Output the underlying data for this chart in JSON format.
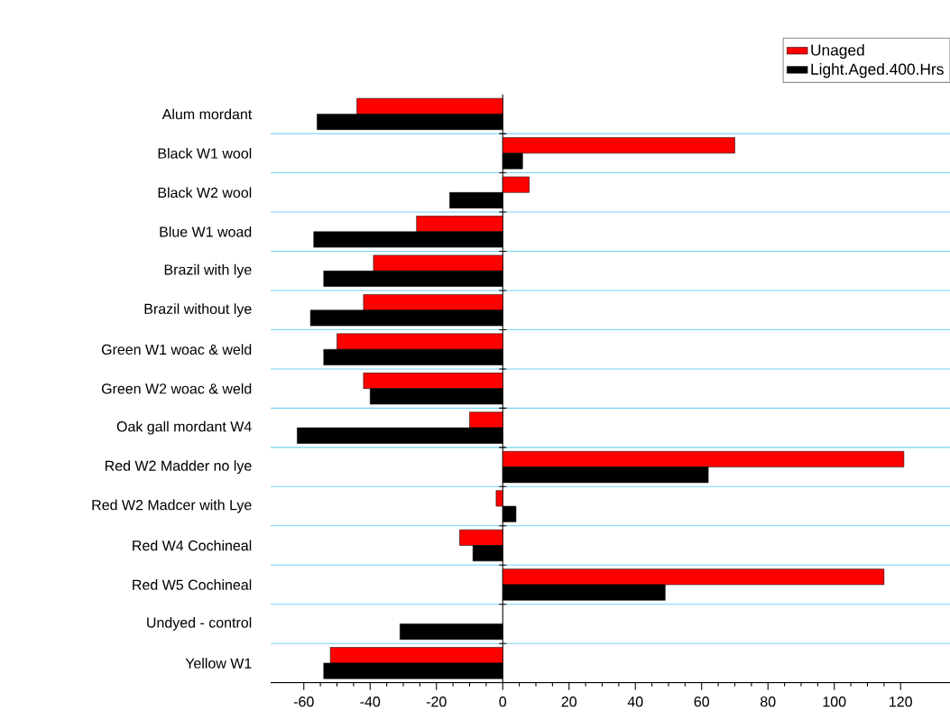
{
  "chart_data": {
    "type": "bar",
    "orientation": "horizontal",
    "categories": [
      "Alum mordant",
      "Black W1 wool",
      "Black W2 wool",
      "Blue W1 woad",
      "Brazil with lye",
      "Brazil without lye",
      "Green W1 woac & weld",
      "Green W2 woac & weld",
      "Oak gall mordant W4",
      "Red W2 Madder no lye",
      "Red W2 Madcer with Lye",
      "Red W4 Cochineal",
      "Red W5 Cochineal",
      "Undyed - control",
      "Yellow W1"
    ],
    "series": [
      {
        "name": "Unaged",
        "color": "#ff0000",
        "values": [
          -44,
          70,
          8,
          -26,
          -39,
          -42,
          -50,
          -42,
          -10,
          121,
          -2,
          -13,
          115,
          null,
          -52
        ]
      },
      {
        "name": "Light.Aged.400.Hrs",
        "color": "#000000",
        "values": [
          -56,
          6,
          -16,
          -57,
          -54,
          -58,
          -54,
          -40,
          -62,
          62,
          4,
          -9,
          49,
          -31,
          -54
        ]
      }
    ],
    "xlim": [
      -70,
      135
    ],
    "xticks": [
      -60,
      -40,
      -20,
      0,
      20,
      40,
      60,
      80,
      100,
      120
    ],
    "grid": "y",
    "legend": "top right"
  }
}
